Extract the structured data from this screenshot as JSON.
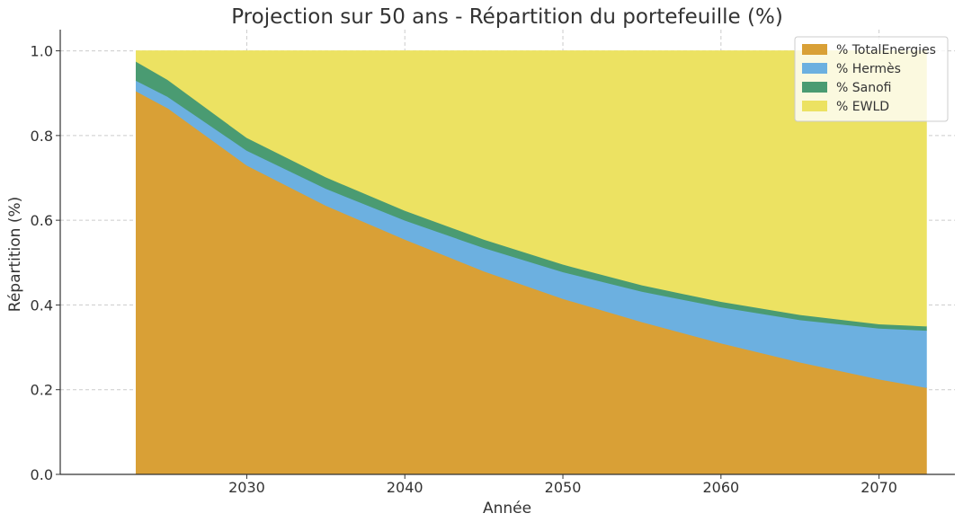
{
  "chart_data": {
    "type": "area",
    "stacked": true,
    "title": "Projection sur 50 ans - Répartition du portefeuille (%)",
    "xlabel": "Année",
    "ylabel": "Répartition (%)",
    "xlim": [
      2018.2,
      2074.8
    ],
    "ylim": [
      0,
      1.05
    ],
    "xticks": [
      2030,
      2040,
      2050,
      2060,
      2070
    ],
    "yticks": [
      0.0,
      0.2,
      0.4,
      0.6,
      0.8,
      1.0
    ],
    "grid": true,
    "legend_position": "top-right",
    "x": [
      2023,
      2025,
      2030,
      2035,
      2040,
      2045,
      2050,
      2055,
      2060,
      2065,
      2070,
      2073
    ],
    "series": [
      {
        "name": "% TotalEnergies",
        "color": "#D9A036",
        "values": [
          0.905,
          0.865,
          0.73,
          0.635,
          0.555,
          0.48,
          0.415,
          0.36,
          0.31,
          0.265,
          0.225,
          0.205
        ]
      },
      {
        "name": "% Hermès",
        "color": "#6CB0E0",
        "values": [
          0.025,
          0.027,
          0.035,
          0.04,
          0.045,
          0.055,
          0.063,
          0.072,
          0.085,
          0.1,
          0.12,
          0.135
        ]
      },
      {
        "name": "% Sanofi",
        "color": "#4A9B72",
        "values": [
          0.045,
          0.04,
          0.03,
          0.027,
          0.023,
          0.02,
          0.018,
          0.015,
          0.013,
          0.012,
          0.01,
          0.01
        ]
      },
      {
        "name": "% EWLD",
        "color": "#ECE262",
        "values": [
          0.025,
          0.068,
          0.205,
          0.298,
          0.377,
          0.445,
          0.504,
          0.553,
          0.592,
          0.623,
          0.645,
          0.65
        ]
      }
    ]
  }
}
